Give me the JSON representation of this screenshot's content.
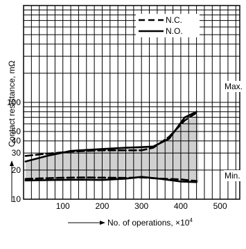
{
  "chart_data": {
    "type": "line",
    "title": "",
    "xlabel": "No. of operations, ×10",
    "xlabel_superscript": "4",
    "ylabel": "Contact resistance, mΩ",
    "x_scale": "linear",
    "y_scale": "log",
    "xlim": [
      0,
      550
    ],
    "ylim": [
      10,
      1000
    ],
    "grid": true,
    "x_tick_labels": [
      "100",
      "200",
      "300",
      "400",
      "500"
    ],
    "x_ticks": [
      100,
      200,
      300,
      400,
      500
    ],
    "y_tick_labels": [
      "10",
      "20",
      "30",
      "40",
      "50",
      "100"
    ],
    "y_ticks": [
      10,
      20,
      30,
      40,
      50,
      100
    ],
    "legend_position": "top-right",
    "series": [
      {
        "name": "N.C.",
        "style": "dashed",
        "color": "#000000",
        "curves": [
          {
            "x": [
              5,
              60,
              120,
              200,
              260,
              300,
              330,
              370,
              410,
              440
            ],
            "y": [
              28,
              29.5,
              31,
              32,
              32,
              32,
              34,
              44,
              65,
              78
            ]
          },
          {
            "x": [
              5,
              80,
              150,
              200,
              260,
              300,
              350,
              400,
              440
            ],
            "y": [
              16.2,
              16.6,
              16.8,
              16.7,
              16.6,
              16.8,
              16.3,
              16,
              15.4
            ]
          }
        ]
      },
      {
        "name": "N.O.",
        "style": "solid",
        "color": "#000000",
        "curves": [
          {
            "x": [
              5,
              60,
              120,
              200,
              260,
              300,
              330,
              370,
              410,
              440
            ],
            "y": [
              24.5,
              28,
              31.5,
              33,
              34,
              34.5,
              35,
              42,
              70,
              80
            ]
          },
          {
            "x": [
              5,
              80,
              150,
              200,
              260,
              300,
              350,
              400,
              440
            ],
            "y": [
              15.6,
              15.8,
              15.9,
              15.8,
              16.3,
              17,
              16.2,
              15.2,
              15
            ]
          }
        ]
      }
    ],
    "band": {
      "color": "#d0d0d0",
      "x": [
        5,
        60,
        120,
        200,
        260,
        300,
        330,
        370,
        410,
        445
      ],
      "upper": [
        24.5,
        28,
        31.5,
        33,
        34,
        34.5,
        35,
        44,
        62,
        76
      ],
      "lower": [
        15.6,
        15.8,
        15.9,
        15.8,
        16.3,
        17,
        16.2,
        15.6,
        15,
        15
      ]
    },
    "annotations": [
      "Max.",
      "Min."
    ]
  }
}
